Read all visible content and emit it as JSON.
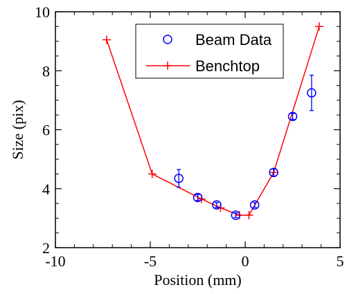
{
  "chart_data": {
    "type": "scatter",
    "xlabel": "Position (mm)",
    "ylabel": "Size (pix)",
    "xlim": [
      -10,
      5
    ],
    "ylim": [
      2,
      10
    ],
    "xticks": [
      -10,
      -5,
      0,
      5
    ],
    "yticks": [
      2,
      4,
      6,
      8,
      10
    ],
    "grid": false,
    "legend_placement": "top-right",
    "series": [
      {
        "name": "Beam Data",
        "style": "markers-with-errorbars",
        "marker": "open-circle",
        "color": "#0000ff",
        "x": [
          -3.5,
          -2.5,
          -1.5,
          -0.5,
          0.5,
          1.5,
          2.5,
          3.5
        ],
        "y": [
          4.35,
          3.7,
          3.45,
          3.1,
          3.45,
          4.55,
          6.45,
          7.25
        ],
        "yerr": [
          0.3,
          0.1,
          0.08,
          0.08,
          0.08,
          0.12,
          0.1,
          0.6
        ]
      },
      {
        "name": "Benchtop",
        "style": "line-with-markers",
        "marker": "plus",
        "color": "#ff0000",
        "x": [
          -7.3,
          -4.9,
          -2.3,
          -1.3,
          -0.3,
          0.2,
          1.5,
          3.9
        ],
        "y": [
          9.05,
          4.5,
          3.65,
          3.35,
          3.1,
          3.1,
          4.55,
          9.5
        ]
      }
    ]
  }
}
